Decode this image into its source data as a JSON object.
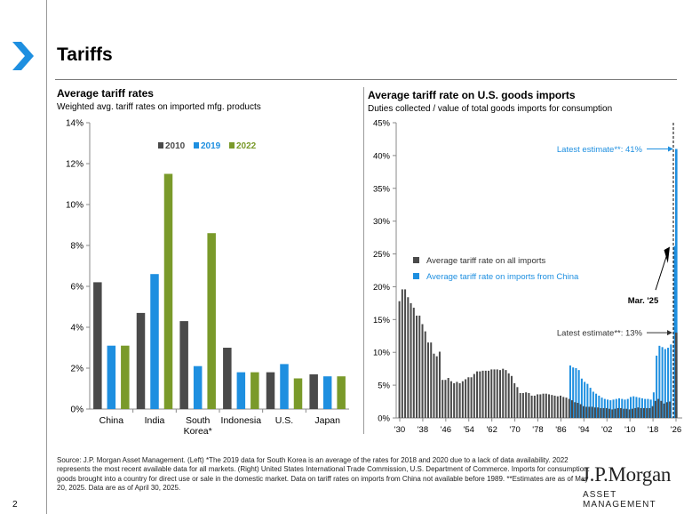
{
  "page": {
    "title": "Tariffs",
    "page_number": "2",
    "footnote": "Source: J.P. Morgan Asset Management. (Left) *The 2019 data for South Korea is an average of the rates for 2018 and 2020 due to a lack of data availability. 2022 represents the most recent available data for all markets. (Right) United States International Trade Commission, U.S. Department of Commerce. Imports for consumption: goods brought into a country for direct use or sale in the domestic market. Data on tariff rates on imports from China not available before 1989. **Estimates are as of May 20, 2025. Data are as of April 30, 2025.",
    "brand": "J.P.Morgan",
    "brand_sub": "ASSET MANAGEMENT",
    "colors": {
      "accent": "#1e8fe0",
      "dark": "#4a4a4a",
      "green": "#7a9a2a"
    }
  },
  "chart_data": [
    {
      "type": "bar",
      "title": "Average tariff rates",
      "subtitle": "Weighted avg. tariff rates on imported mfg. products",
      "categories": [
        "China",
        "India",
        "South Korea*",
        "Indonesia",
        "U.S.",
        "Japan"
      ],
      "category_lines": [
        [
          "China"
        ],
        [
          "India"
        ],
        [
          "South",
          "Korea*"
        ],
        [
          "Indonesia"
        ],
        [
          "U.S."
        ],
        [
          "Japan"
        ]
      ],
      "series": [
        {
          "name": "2010",
          "color": "#4a4a4a",
          "values": [
            6.2,
            4.7,
            4.3,
            3.0,
            1.8,
            1.7
          ]
        },
        {
          "name": "2019",
          "color": "#1e8fe0",
          "values": [
            3.1,
            6.6,
            2.1,
            1.8,
            2.2,
            1.6
          ]
        },
        {
          "name": "2022",
          "color": "#7a9a2a",
          "values": [
            3.1,
            11.5,
            8.6,
            1.8,
            1.5,
            1.6
          ]
        }
      ],
      "ylim": [
        0,
        14
      ],
      "yticks": [
        0,
        2,
        4,
        6,
        8,
        10,
        12,
        14
      ],
      "yticklabels": [
        "0%",
        "2%",
        "4%",
        "6%",
        "8%",
        "10%",
        "12%",
        "14%"
      ],
      "legend_position": "top"
    },
    {
      "type": "bar",
      "title": "Average tariff rate on U.S. goods imports",
      "subtitle": "Duties collected / value of total goods imports for consumption",
      "x_start": 1930,
      "x_end": 2026,
      "ylim": [
        0,
        45
      ],
      "yticks": [
        0,
        5,
        10,
        15,
        20,
        25,
        30,
        35,
        40,
        45
      ],
      "yticklabels": [
        "0%",
        "5%",
        "10%",
        "15%",
        "20%",
        "25%",
        "30%",
        "35%",
        "40%",
        "45%"
      ],
      "xticks": [
        1930,
        1938,
        1946,
        1954,
        1962,
        1970,
        1978,
        1986,
        1994,
        2002,
        2010,
        2018,
        2026
      ],
      "xticklabels": [
        "'30",
        "'38",
        "'46",
        "'54",
        "'62",
        "'70",
        "'78",
        "'86",
        "'94",
        "'02",
        "'10",
        "'18",
        "'26"
      ],
      "series": [
        {
          "name": "Average tariff rate on all imports",
          "color": "#4a4a4a",
          "start_year": 1930,
          "values": [
            17.8,
            19.6,
            19.6,
            18.4,
            17.5,
            16.8,
            15.6,
            15.6,
            14.3,
            13.2,
            11.5,
            11.5,
            9.8,
            9.4,
            10.1,
            5.8,
            5.8,
            6.1,
            5.6,
            5.3,
            5.5,
            5.3,
            5.6,
            5.9,
            6.2,
            6.2,
            6.7,
            7.1,
            7.1,
            7.2,
            7.2,
            7.2,
            7.4,
            7.4,
            7.4,
            7.3,
            7.5,
            7.3,
            6.8,
            6.4,
            5.3,
            4.7,
            3.8,
            3.8,
            3.9,
            3.8,
            3.4,
            3.4,
            3.6,
            3.6,
            3.7,
            3.7,
            3.6,
            3.5,
            3.4,
            3.3,
            3.4,
            3.2,
            3.1,
            2.9,
            2.7,
            2.4,
            2.3,
            2.1,
            1.8,
            1.7,
            1.7,
            1.7,
            1.6,
            1.6,
            1.5,
            1.5,
            1.5,
            1.4,
            1.3,
            1.4,
            1.5,
            1.5,
            1.4,
            1.4,
            1.3,
            1.4,
            1.5,
            1.6,
            1.5,
            1.5,
            1.5,
            1.5,
            1.8,
            2.6,
            2.9,
            2.6,
            2.2,
            2.4,
            2.5
          ]
        },
        {
          "name": "Average tariff rate on imports from China",
          "color": "#1e8fe0",
          "start_year": 1989,
          "values": [
            8.0,
            7.7,
            7.6,
            7.3,
            6.0,
            5.5,
            5.2,
            4.6,
            4.0,
            3.7,
            3.4,
            3.1,
            2.9,
            2.8,
            2.7,
            2.8,
            2.9,
            3.0,
            2.9,
            2.8,
            2.9,
            3.2,
            3.3,
            3.2,
            3.1,
            3.0,
            2.9,
            2.9,
            2.8,
            3.9,
            9.5,
            11.0,
            10.8,
            10.5,
            10.7,
            11.2
          ]
        }
      ],
      "latest_estimates": [
        {
          "label": "Latest estimate**: 41%",
          "value": 41,
          "color": "#1e8fe0"
        },
        {
          "label": "Latest estimate**: 13%",
          "value": 13,
          "color": "#000000"
        }
      ],
      "mar25": {
        "label": "Mar. '25",
        "value": 26.2
      }
    }
  ]
}
